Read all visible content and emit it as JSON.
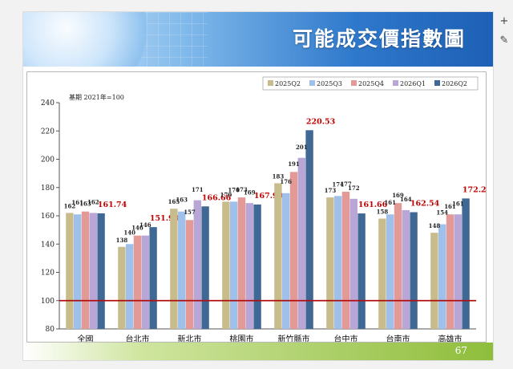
{
  "slide": {
    "title": "可能成交價指數圖",
    "page_number": "67"
  },
  "tools": {
    "add_icon": "plus-icon",
    "edit_icon": "pencil-icon"
  },
  "chart_data": {
    "type": "bar",
    "base_note": "基期 2021年=100",
    "categories": [
      "全國",
      "台北市",
      "新北市",
      "桃園市",
      "新竹縣市",
      "台中市",
      "台南市",
      "高雄市"
    ],
    "series": [
      {
        "name": "2025Q2",
        "color": "#c8bc8c",
        "values": [
          162,
          138,
          165,
          170,
          183,
          173,
          158,
          148
        ],
        "labels": [
          "162",
          "138",
          "165",
          "170",
          "183",
          "173",
          "158",
          "148"
        ]
      },
      {
        "name": "2025Q3",
        "color": "#9fc0ea",
        "values": [
          161,
          140,
          163,
          170,
          176,
          174,
          161,
          154
        ],
        "labels": [
          "161",
          "140",
          "163",
          "170",
          "176",
          "174",
          "161",
          "154"
        ]
      },
      {
        "name": "2025Q4",
        "color": "#e39a97",
        "values": [
          163,
          146,
          157,
          173,
          191,
          177,
          169,
          161
        ],
        "labels": [
          "163",
          "146",
          "157",
          "173",
          "191",
          "177",
          "169",
          "161"
        ]
      },
      {
        "name": "2026Q1",
        "color": "#b8a6d6",
        "values": [
          162,
          146,
          171,
          169,
          201,
          172,
          164,
          161
        ],
        "labels": [
          "162",
          "146",
          "171",
          "169",
          "201",
          "172",
          "164",
          "161"
        ]
      },
      {
        "name": "2026Q2",
        "color": "#3f6894",
        "values": [
          161.74,
          151.98,
          166.66,
          167.99,
          220.53,
          161.66,
          162.54,
          172.26
        ],
        "labels": [
          "161.74",
          "151.98",
          "166.66",
          "167.99",
          "220.53",
          "161.66",
          "162.54",
          "172.26"
        ]
      }
    ],
    "ylim": [
      80,
      240
    ],
    "yticks": [
      80,
      100,
      120,
      140,
      160,
      180,
      200,
      220,
      240
    ],
    "reference_line": 100,
    "reference_color": "#b01010",
    "highlight_color": "#c00000",
    "grid": false,
    "legend_position": "top-right"
  }
}
